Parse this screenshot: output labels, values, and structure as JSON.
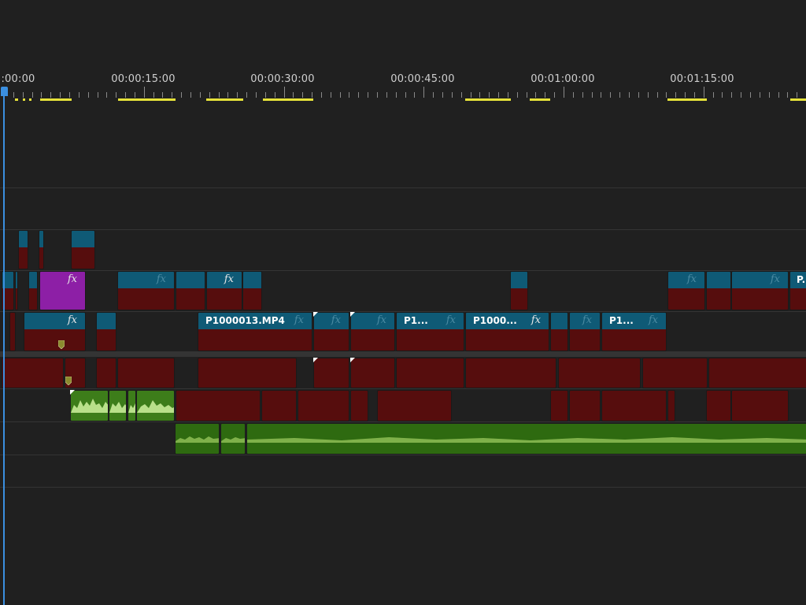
{
  "ruler": {
    "timecodes": [
      ":00:00",
      "00:00:15:00",
      "00:00:30:00",
      "00:00:45:00",
      "00:01:00:00",
      "00:01:15:00"
    ]
  },
  "clip_names": {
    "v1_a": "P1000013.MP4",
    "v1_b": "P1...",
    "v1_c": "P1000...",
    "v1_d": "P1...",
    "v3_end": "P..."
  },
  "fx_label": "fx",
  "colors": {
    "video_header": "#0f5a76",
    "video_body": "#560d0d",
    "audio_clip": "#2e6a10",
    "nested_clip": "#8d1fa6",
    "playhead": "#3b8fe0",
    "in_out_range": "#e6e23a"
  }
}
